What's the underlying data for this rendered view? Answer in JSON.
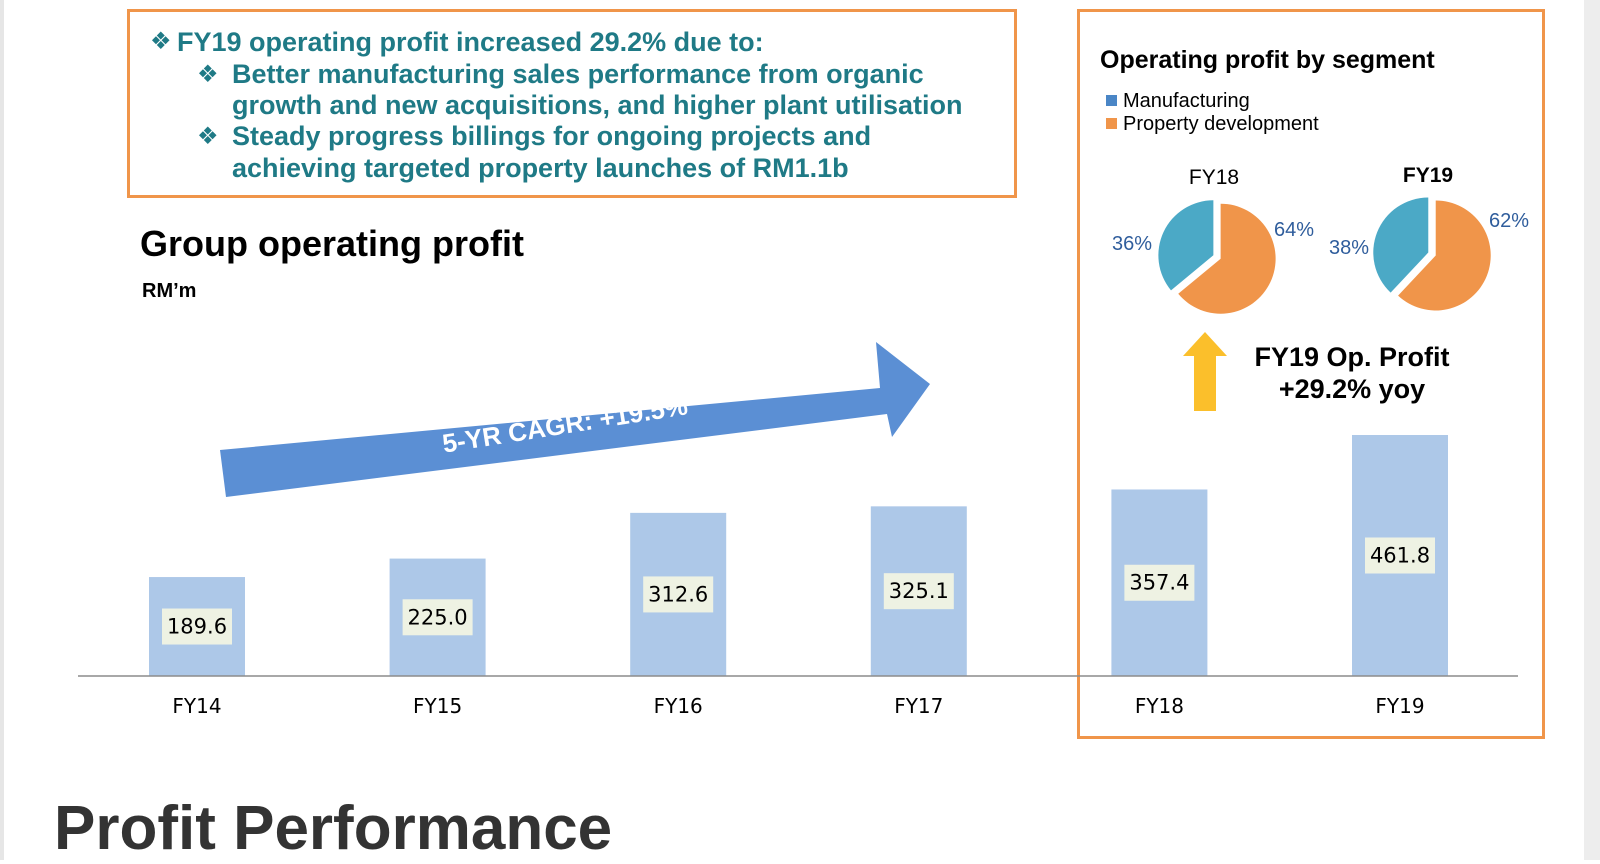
{
  "callout": {
    "headline": "FY19 operating profit increased 29.2% due to:",
    "bullets": [
      {
        "line1": "Better manufacturing sales performance from organic",
        "line2": "growth and new acquisitions, and higher plant utilisation"
      },
      {
        "line1": "Steady progress billings for ongoing projects and",
        "line2": "achieving targeted property launches of RM1.1b"
      }
    ],
    "bullet_icon": "diamond-bullet-icon",
    "color": "#1f7a86"
  },
  "group_chart_title": "Group operating profit",
  "unit": "RM’m",
  "cagr_label": "5-YR CAGR: +19.5%",
  "segment": {
    "title": "Operating profit by segment",
    "legend": [
      {
        "label": "Manufacturing",
        "color": "#4a86c6"
      },
      {
        "label": "Property development",
        "color": "#f0954a"
      }
    ],
    "yoy_line1": "FY19 Op. Profit",
    "yoy_line2": "+29.2% yoy",
    "arrow_color": "#fbbf2b"
  },
  "page_title": "Profit Performance",
  "colors": {
    "bar": "#adc8e8",
    "value_label_bg": "#eef2e3",
    "pie_manufacturing": "#4ba9c6",
    "pie_property": "#f0954a",
    "cagr_arrow": "#5b8fd4",
    "highlight_border": "#f0954a"
  },
  "chart_data": [
    {
      "type": "bar",
      "title": "Group operating profit",
      "ylabel": "RM’m",
      "categories": [
        "FY14",
        "FY15",
        "FY16",
        "FY17",
        "FY18",
        "FY19"
      ],
      "values": [
        189.6,
        225.0,
        312.6,
        325.1,
        357.4,
        461.8
      ],
      "value_labels": [
        "189.6",
        "225.0",
        "312.6",
        "325.1",
        "357.4",
        "461.8"
      ],
      "ylim": [
        0,
        480
      ]
    },
    {
      "type": "pie",
      "title": "FY18",
      "labels": [
        "Manufacturing",
        "Property development"
      ],
      "values": [
        36,
        64
      ],
      "pct_labels": [
        "36%",
        "64%"
      ]
    },
    {
      "type": "pie",
      "title": "FY19",
      "labels": [
        "Manufacturing",
        "Property development"
      ],
      "values": [
        38,
        62
      ],
      "pct_labels": [
        "38%",
        "62%"
      ]
    }
  ]
}
